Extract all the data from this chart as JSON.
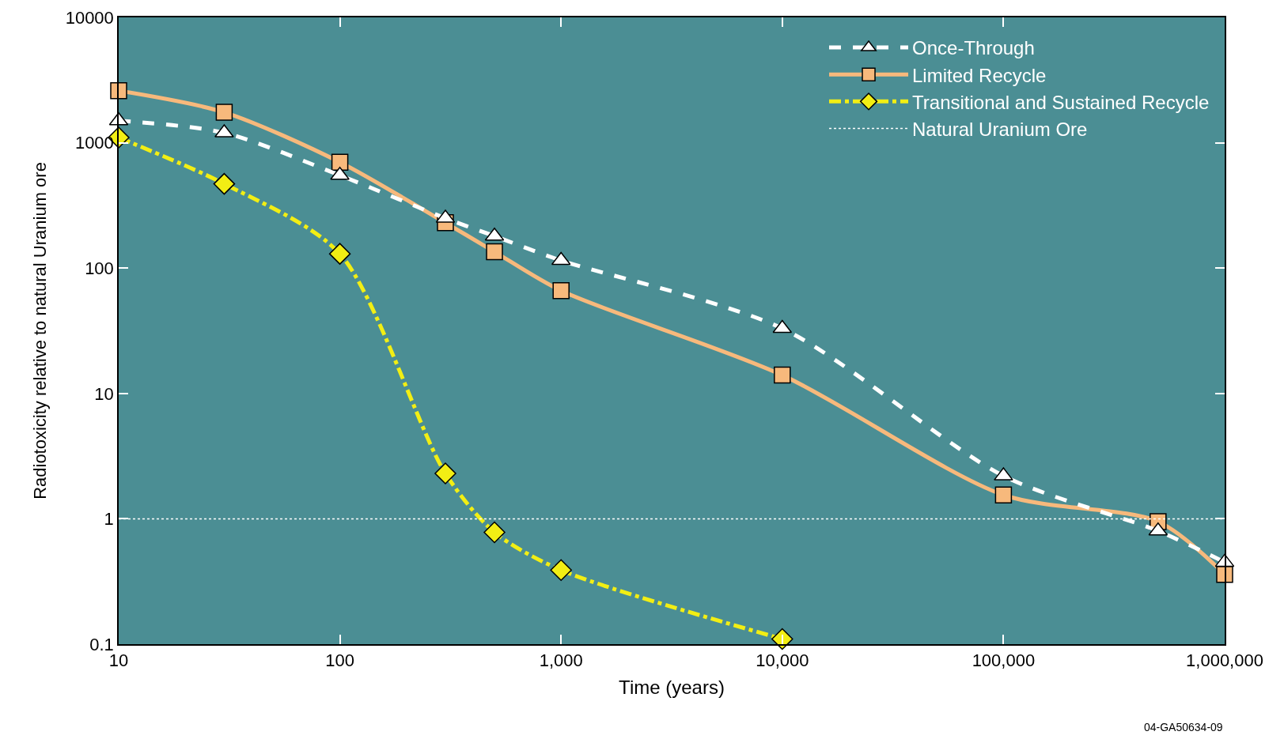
{
  "chart_data": {
    "type": "line",
    "xlabel": "Time (years)",
    "ylabel": "Radiotoxicity relative to natural Uranium ore",
    "log": "xy",
    "xlim": [
      10,
      1000000
    ],
    "xticks": [
      10,
      100,
      {
        "value": 1000,
        "label": "1,000"
      },
      {
        "value": 10000,
        "label": "10,000"
      },
      {
        "value": 100000,
        "label": "100,000"
      },
      {
        "value": 1000000,
        "label": "1,000,000"
      }
    ],
    "ylim": [
      0.1,
      10000
    ],
    "yticks": [
      0.1,
      1,
      10,
      100,
      1000,
      10000
    ],
    "legend": "top right",
    "series": [
      {
        "name": "Once-Through",
        "color": "#ffffff",
        "line_style": "dashed",
        "marker": "triangle",
        "x": [
          10,
          30,
          100,
          300,
          500,
          1000,
          10000,
          100000,
          500000,
          1000000
        ],
        "values": [
          1500,
          1200,
          550,
          250,
          180,
          115,
          33,
          2.2,
          0.8,
          0.45
        ]
      },
      {
        "name": "Limited Recycle",
        "color": "#f7b97c",
        "line_style": "solid",
        "marker": "square",
        "x": [
          10,
          30,
          100,
          300,
          500,
          1000,
          10000,
          100000,
          500000,
          1000000
        ],
        "values": [
          2600,
          1750,
          700,
          230,
          135,
          66,
          14,
          1.55,
          0.95,
          0.36
        ]
      },
      {
        "name": "Transitional and Sustained Recycle",
        "color": "#f2ee14",
        "line_style": "dashdot",
        "marker": "diamond",
        "x": [
          10,
          30,
          100,
          300,
          500,
          1000,
          10000
        ],
        "values": [
          1100,
          470,
          130,
          2.3,
          0.78,
          0.39,
          0.11
        ]
      }
    ],
    "ref_lines": [
      {
        "axis": "y",
        "value": 1,
        "label": "Natural Uranium Ore",
        "color": "#ffffff",
        "line_style": "dotted"
      }
    ],
    "annotations": [
      "04-GA50634-09"
    ]
  }
}
